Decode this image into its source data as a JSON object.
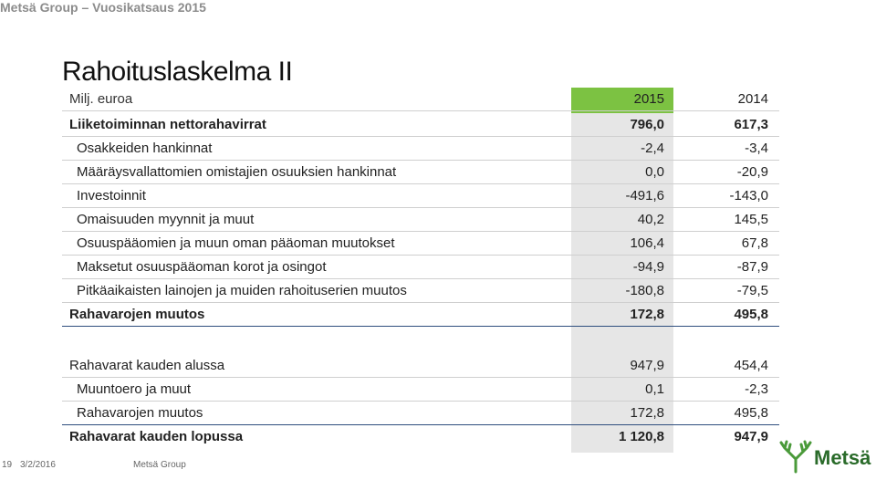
{
  "header": {
    "title": "Metsä Group – Vuosikatsaus 2015"
  },
  "slide": {
    "title": "Rahoituslaskelma II"
  },
  "table": {
    "unit_label": "Milj. euroa",
    "col_2015": "2015",
    "col_2014": "2014",
    "rows": [
      {
        "label": "Liiketoiminnan nettorahavirrat",
        "v2015": "796,0",
        "v2014": "617,3"
      },
      {
        "label": "Osakkeiden hankinnat",
        "v2015": "-2,4",
        "v2014": "-3,4"
      },
      {
        "label": "Määräysvallattomien omistajien osuuksien hankinnat",
        "v2015": "0,0",
        "v2014": "-20,9"
      },
      {
        "label": "Investoinnit",
        "v2015": "-491,6",
        "v2014": "-143,0"
      },
      {
        "label": "Omaisuuden myynnit ja muut",
        "v2015": "40,2",
        "v2014": "145,5"
      },
      {
        "label": "Osuuspääomien ja muun oman pääoman muutokset",
        "v2015": "106,4",
        "v2014": "67,8"
      },
      {
        "label": "Maksetut osuuspääoman korot ja osingot",
        "v2015": "-94,9",
        "v2014": "-87,9"
      },
      {
        "label": "Pitkäaikaisten lainojen ja muiden rahoituserien muutos",
        "v2015": "-180,8",
        "v2014": "-79,5"
      },
      {
        "label": "Rahavarojen muutos",
        "v2015": "172,8",
        "v2014": "495,8"
      },
      {
        "label": "Rahavarat kauden alussa",
        "v2015": "947,9",
        "v2014": "454,4"
      },
      {
        "label": "Muuntoero ja muut",
        "v2015": "0,1",
        "v2014": "-2,3"
      },
      {
        "label": "Rahavarojen muutos",
        "v2015": "172,8",
        "v2014": "495,8"
      },
      {
        "label": "Rahavarat kauden lopussa",
        "v2015": "1 120,8",
        "v2014": "947,9"
      }
    ]
  },
  "footer": {
    "page": "19",
    "date": "3/2/2016",
    "company": "Metsä Group"
  },
  "logo": {
    "text": "Metsä",
    "icon": "moose-antler-icon",
    "color": "#2a6b2a"
  }
}
